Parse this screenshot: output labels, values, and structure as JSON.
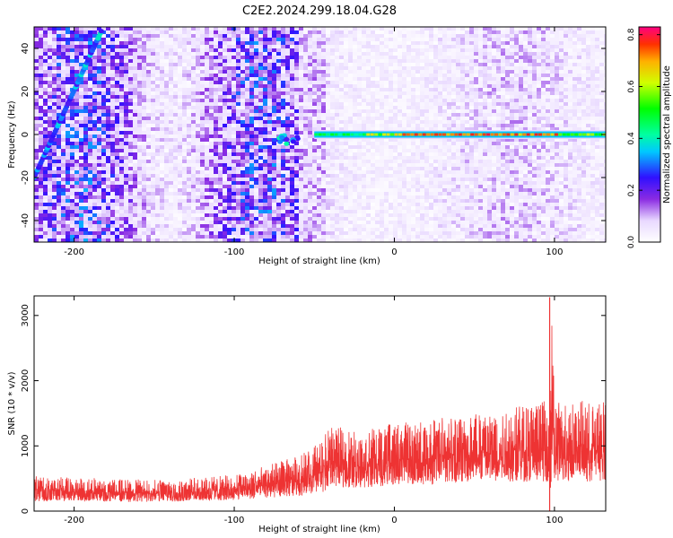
{
  "title": "C2E2.2024.299.18.04.G28",
  "chart_data": [
    {
      "type": "heatmap",
      "xlabel": "Height of straight line (km)",
      "ylabel": "Frequency (Hz)",
      "xlim": [
        -225,
        132
      ],
      "ylim": [
        -50,
        50
      ],
      "xticks": [
        -200,
        -100,
        0,
        100
      ],
      "yticks": [
        -40,
        -20,
        0,
        20,
        40
      ],
      "colorbar": {
        "label": "Normalized spectral amplitude",
        "range": [
          0,
          0.83
        ],
        "ticks": [
          "0.0",
          "0.2",
          "0.4",
          "0.6",
          "0.8"
        ],
        "tick_values": [
          0.0,
          0.2,
          0.4,
          0.6,
          0.8
        ]
      },
      "features": [
        {
          "name": "diagonal streak",
          "x": [
            -225,
            -183
          ],
          "y": [
            -20,
            48
          ],
          "amplitude": 0.3
        },
        {
          "name": "blob near -70 km",
          "x": [
            -72,
            -60
          ],
          "y": [
            -5,
            0
          ],
          "amplitude": 0.35
        },
        {
          "name": "zero-frequency line",
          "x": [
            -50,
            132
          ],
          "y": [
            0,
            0
          ],
          "amplitude_peak": 0.8,
          "peak_x": [
            0,
            100
          ]
        }
      ]
    },
    {
      "type": "line",
      "xlabel": "Height of straight line (km)",
      "ylabel": "SNR (10 * v/v)",
      "xlim": [
        -225,
        132
      ],
      "ylim": [
        0,
        3300
      ],
      "xticks": [
        -200,
        -100,
        0,
        100
      ],
      "yticks": [
        0,
        1000,
        2000,
        3000
      ],
      "series": [
        {
          "color": "#ee3333",
          "envelope_x": [
            -225,
            -200,
            -180,
            -150,
            -120,
            -100,
            -80,
            -60,
            -45,
            -40,
            -20,
            0,
            20,
            50,
            80,
            96,
            98,
            100,
            120,
            132
          ],
          "envelope_low": [
            150,
            150,
            140,
            140,
            150,
            170,
            200,
            230,
            280,
            380,
            350,
            400,
            400,
            450,
            450,
            450,
            0,
            450,
            450,
            450
          ],
          "envelope_high": [
            550,
            520,
            500,
            480,
            520,
            560,
            700,
            850,
            1100,
            1300,
            1250,
            1350,
            1400,
            1550,
            1650,
            1700,
            3300,
            1700,
            1700,
            1700
          ],
          "spike_x": 97,
          "spike_y": 3280
        }
      ]
    }
  ]
}
